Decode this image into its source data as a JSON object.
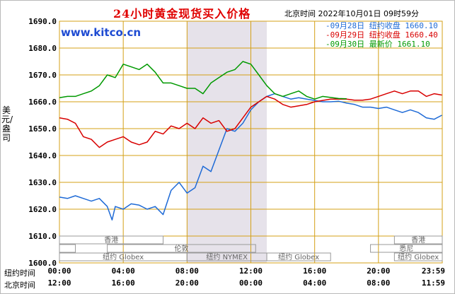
{
  "title": "24小时黄金现货买入价格",
  "subtitle": "北京时间  2022年10月01日 09时59分",
  "logo": "www.kitco.cn",
  "ylabel": "美元/盎司",
  "legend": [
    {
      "date": "-09月28日",
      "label": "纽约收盘",
      "value": "1660.10",
      "color": "#1e6ad6"
    },
    {
      "date": "-09月29日",
      "label": "纽约收盘",
      "value": "1660.40",
      "color": "#d80000"
    },
    {
      "date": "-09月30日",
      "label": "最新价",
      "value": "1661.10",
      "color": "#009900"
    }
  ],
  "x_rows": {
    "ny_label": "纽约时间",
    "bj_label": "北京时间",
    "ny_ticks": [
      "00:00",
      "04:00",
      "08:00",
      "12:00",
      "16:00",
      "20:00",
      "23:59"
    ],
    "bj_ticks": [
      "12:00",
      "16:00",
      "20:00",
      "00:00",
      "04:00",
      "08:00",
      "11:59"
    ]
  },
  "sessions": {
    "row1": [
      "香港",
      "香港"
    ],
    "row2": [
      "伦敦",
      "悉尼"
    ],
    "row3": [
      "纽约 Globex",
      "纽约 NYMEX",
      "纽约 Globex",
      "纽约 Globex"
    ]
  },
  "colors": {
    "grid": "#d4a017",
    "shade": "#e6e2ea",
    "session_box": "#999999",
    "axis_text": "#000000"
  },
  "chart_data": {
    "type": "line",
    "title": "24小时黄金现货买入价格",
    "ylabel": "美元/盎司",
    "ylim": [
      1600,
      1690
    ],
    "yticks": [
      1600.0,
      1610.0,
      1620.0,
      1630.0,
      1640.0,
      1650.0,
      1660.0,
      1670.0,
      1680.0,
      1690.0
    ],
    "xlim": [
      0,
      24
    ],
    "grid": true,
    "legend_position": "top-right",
    "shaded_range": [
      8.0,
      13.0
    ],
    "series": [
      {
        "name": "09月28日",
        "color": "#1e6ad6",
        "x": [
          0,
          0.5,
          1,
          1.5,
          2,
          2.5,
          3,
          3.3,
          3.5,
          4,
          4.5,
          5,
          5.5,
          6,
          6.5,
          7,
          7.5,
          8,
          8.5,
          9,
          9.5,
          10,
          10.5,
          11,
          11.5,
          12,
          12.5,
          13,
          13.5,
          14,
          14.5,
          15,
          15.5,
          16,
          16.5,
          17,
          17.5,
          18,
          18.5,
          19,
          19.5,
          20,
          20.5,
          21,
          21.5,
          22,
          22.5,
          23,
          23.5,
          23.98
        ],
        "y": [
          1624.5,
          1624,
          1625,
          1624,
          1623,
          1624,
          1621,
          1616,
          1621,
          1620,
          1622,
          1621.5,
          1620,
          1621,
          1618,
          1627,
          1630,
          1626,
          1628,
          1636,
          1634,
          1642,
          1650,
          1649,
          1652,
          1657,
          1660,
          1662,
          1663,
          1662,
          1661,
          1661.5,
          1661,
          1660.5,
          1660,
          1660,
          1660.2,
          1659.5,
          1659,
          1658,
          1658,
          1657.5,
          1658,
          1657,
          1656,
          1657,
          1656,
          1654,
          1653.5,
          1655
        ]
      },
      {
        "name": "09月29日",
        "color": "#d80000",
        "x": [
          0,
          0.5,
          1,
          1.5,
          2,
          2.5,
          3,
          3.5,
          4,
          4.5,
          5,
          5.5,
          6,
          6.5,
          7,
          7.5,
          8,
          8.5,
          9,
          9.5,
          10,
          10.5,
          11,
          11.5,
          12,
          12.5,
          13,
          13.5,
          14,
          14.5,
          15,
          15.5,
          16,
          16.5,
          17,
          17.5,
          18,
          18.5,
          19,
          19.5,
          20,
          20.5,
          21,
          21.5,
          22,
          22.5,
          23,
          23.5,
          23.98
        ],
        "y": [
          1654,
          1653.5,
          1652,
          1647,
          1646,
          1643,
          1645,
          1646,
          1647,
          1645,
          1644,
          1645,
          1649,
          1648,
          1651,
          1650,
          1652,
          1650,
          1654,
          1652,
          1653,
          1649,
          1650,
          1654,
          1658,
          1660,
          1662,
          1661,
          1659,
          1658,
          1658.5,
          1659,
          1660,
          1660.5,
          1661,
          1661,
          1661,
          1660.6,
          1660.6,
          1661,
          1662,
          1663,
          1664,
          1663,
          1664,
          1664,
          1662,
          1663,
          1662.5
        ]
      },
      {
        "name": "09月30日",
        "color": "#009900",
        "x": [
          0,
          0.5,
          1,
          1.5,
          2,
          2.5,
          3,
          3.5,
          4,
          4.5,
          5,
          5.5,
          6,
          6.5,
          7,
          7.5,
          8,
          8.5,
          9,
          9.5,
          10,
          10.5,
          11,
          11.5,
          12,
          12.5,
          13,
          13.5,
          14,
          14.5,
          15,
          15.5,
          16,
          16.5,
          17,
          17.5,
          18
        ],
        "y": [
          1661.5,
          1662,
          1662,
          1663,
          1664,
          1666,
          1670,
          1669,
          1674,
          1673,
          1672,
          1674,
          1671,
          1667,
          1667,
          1666,
          1665,
          1665,
          1663,
          1667,
          1669,
          1671,
          1672,
          1675,
          1674,
          1670,
          1666,
          1663,
          1662,
          1663,
          1664,
          1662,
          1661,
          1662,
          1661.6,
          1661.2,
          1661.1
        ]
      }
    ]
  }
}
